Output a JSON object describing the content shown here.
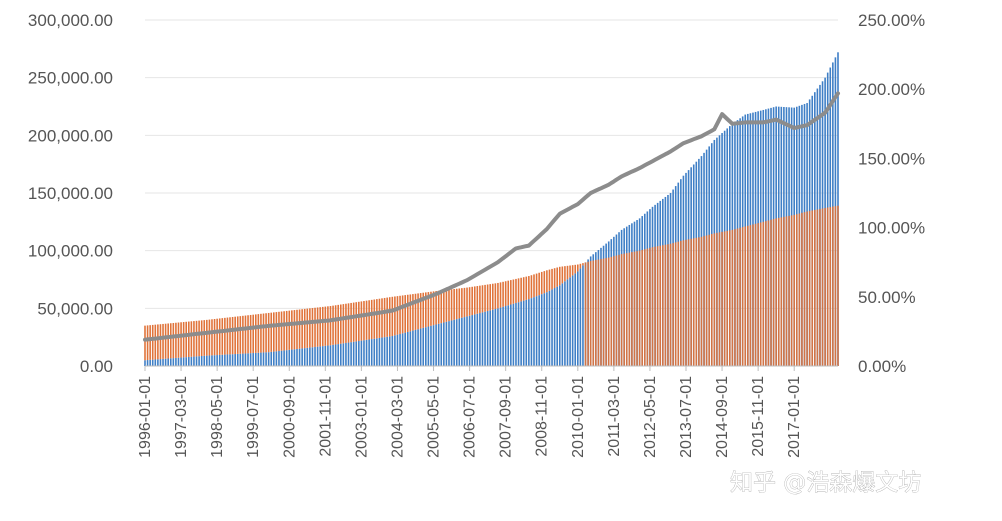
{
  "chart_data": {
    "type": "bar",
    "title": "",
    "xlabel": "",
    "ylabel": "",
    "y_left": {
      "ylim": [
        0,
        300000
      ],
      "ticks": [
        "0.00",
        "50,000.00",
        "100,000.00",
        "150,000.00",
        "200,000.00",
        "250,000.00",
        "300,000.00"
      ]
    },
    "y_right": {
      "ylim": [
        0,
        2.5
      ],
      "ticks": [
        "0.00%",
        "50.00%",
        "100.00%",
        "150.00%",
        "200.00%",
        "250.00%"
      ]
    },
    "x_tick_labels": [
      "1996-01-01",
      "1997-03-01",
      "1998-05-01",
      "1999-07-01",
      "2000-09-01",
      "2001-11-01",
      "2003-01-01",
      "2004-03-01",
      "2005-05-01",
      "2006-07-01",
      "2007-09-01",
      "2008-11-01",
      "2010-01-01",
      "2011-03-01",
      "2012-05-01",
      "2013-07-01",
      "2014-09-01",
      "2015-11-01",
      "2017-01-01"
    ],
    "x_range": [
      "1996-01",
      "2018-06"
    ],
    "grid": true,
    "legend": "bottom (cropped)",
    "series": [
      {
        "name": "",
        "kind": "bar",
        "axis": "left",
        "color": "#3f7fc6",
        "dates": [
          "1996-01",
          "1998-01",
          "2000-01",
          "2002-01",
          "2004-01",
          "2005-06",
          "2006-06",
          "2007-06",
          "2008-06",
          "2009-01",
          "2009-06",
          "2010-01",
          "2010-06",
          "2011-01",
          "2011-06",
          "2012-01",
          "2012-06",
          "2013-01",
          "2013-06",
          "2014-01",
          "2014-06",
          "2015-01",
          "2015-06",
          "2016-01",
          "2016-06",
          "2017-01",
          "2017-06",
          "2018-01",
          "2018-06"
        ],
        "values": [
          5000,
          9000,
          12000,
          18000,
          26000,
          36000,
          43000,
          50000,
          58000,
          64000,
          70000,
          82000,
          95000,
          108000,
          118000,
          128000,
          138000,
          150000,
          165000,
          182000,
          196000,
          210000,
          218000,
          222000,
          225000,
          224000,
          228000,
          250000,
          272000
        ]
      },
      {
        "name": "",
        "kind": "bar",
        "axis": "left",
        "color": "#e0733a",
        "dates": [
          "1996-01",
          "1998-01",
          "2000-01",
          "2002-01",
          "2004-01",
          "2005-06",
          "2006-06",
          "2007-06",
          "2008-06",
          "2009-01",
          "2009-06",
          "2010-01",
          "2010-06",
          "2011-01",
          "2011-06",
          "2012-01",
          "2012-06",
          "2013-01",
          "2013-06",
          "2014-01",
          "2014-06",
          "2015-01",
          "2015-06",
          "2016-01",
          "2016-06",
          "2017-01",
          "2017-06",
          "2018-01",
          "2018-06"
        ],
        "values": [
          35000,
          40000,
          46000,
          52000,
          60000,
          65000,
          68000,
          72000,
          78000,
          83000,
          86000,
          88000,
          91000,
          94000,
          97000,
          100000,
          103000,
          106000,
          109000,
          112000,
          115000,
          118000,
          121000,
          125000,
          128000,
          131000,
          134000,
          137000,
          139000
        ]
      },
      {
        "name": "",
        "kind": "line",
        "axis": "right",
        "color": "#8c8c8c",
        "dates": [
          "1996-01",
          "1998-01",
          "2000-01",
          "2002-01",
          "2004-01",
          "2005-06",
          "2006-06",
          "2007-06",
          "2008-01",
          "2008-06",
          "2009-01",
          "2009-06",
          "2010-01",
          "2010-06",
          "2011-01",
          "2011-06",
          "2012-01",
          "2012-06",
          "2013-01",
          "2013-06",
          "2014-01",
          "2014-06",
          "2014-09",
          "2015-01",
          "2015-06",
          "2016-01",
          "2016-06",
          "2017-01",
          "2017-06",
          "2018-01",
          "2018-06"
        ],
        "values": [
          0.19,
          0.24,
          0.29,
          0.33,
          0.4,
          0.52,
          0.62,
          0.75,
          0.85,
          0.87,
          0.99,
          1.1,
          1.17,
          1.25,
          1.31,
          1.37,
          1.43,
          1.48,
          1.55,
          1.61,
          1.66,
          1.71,
          1.82,
          1.75,
          1.76,
          1.76,
          1.78,
          1.72,
          1.74,
          1.83,
          1.97
        ]
      }
    ]
  },
  "watermark": "知乎 @浩森爆文坊"
}
